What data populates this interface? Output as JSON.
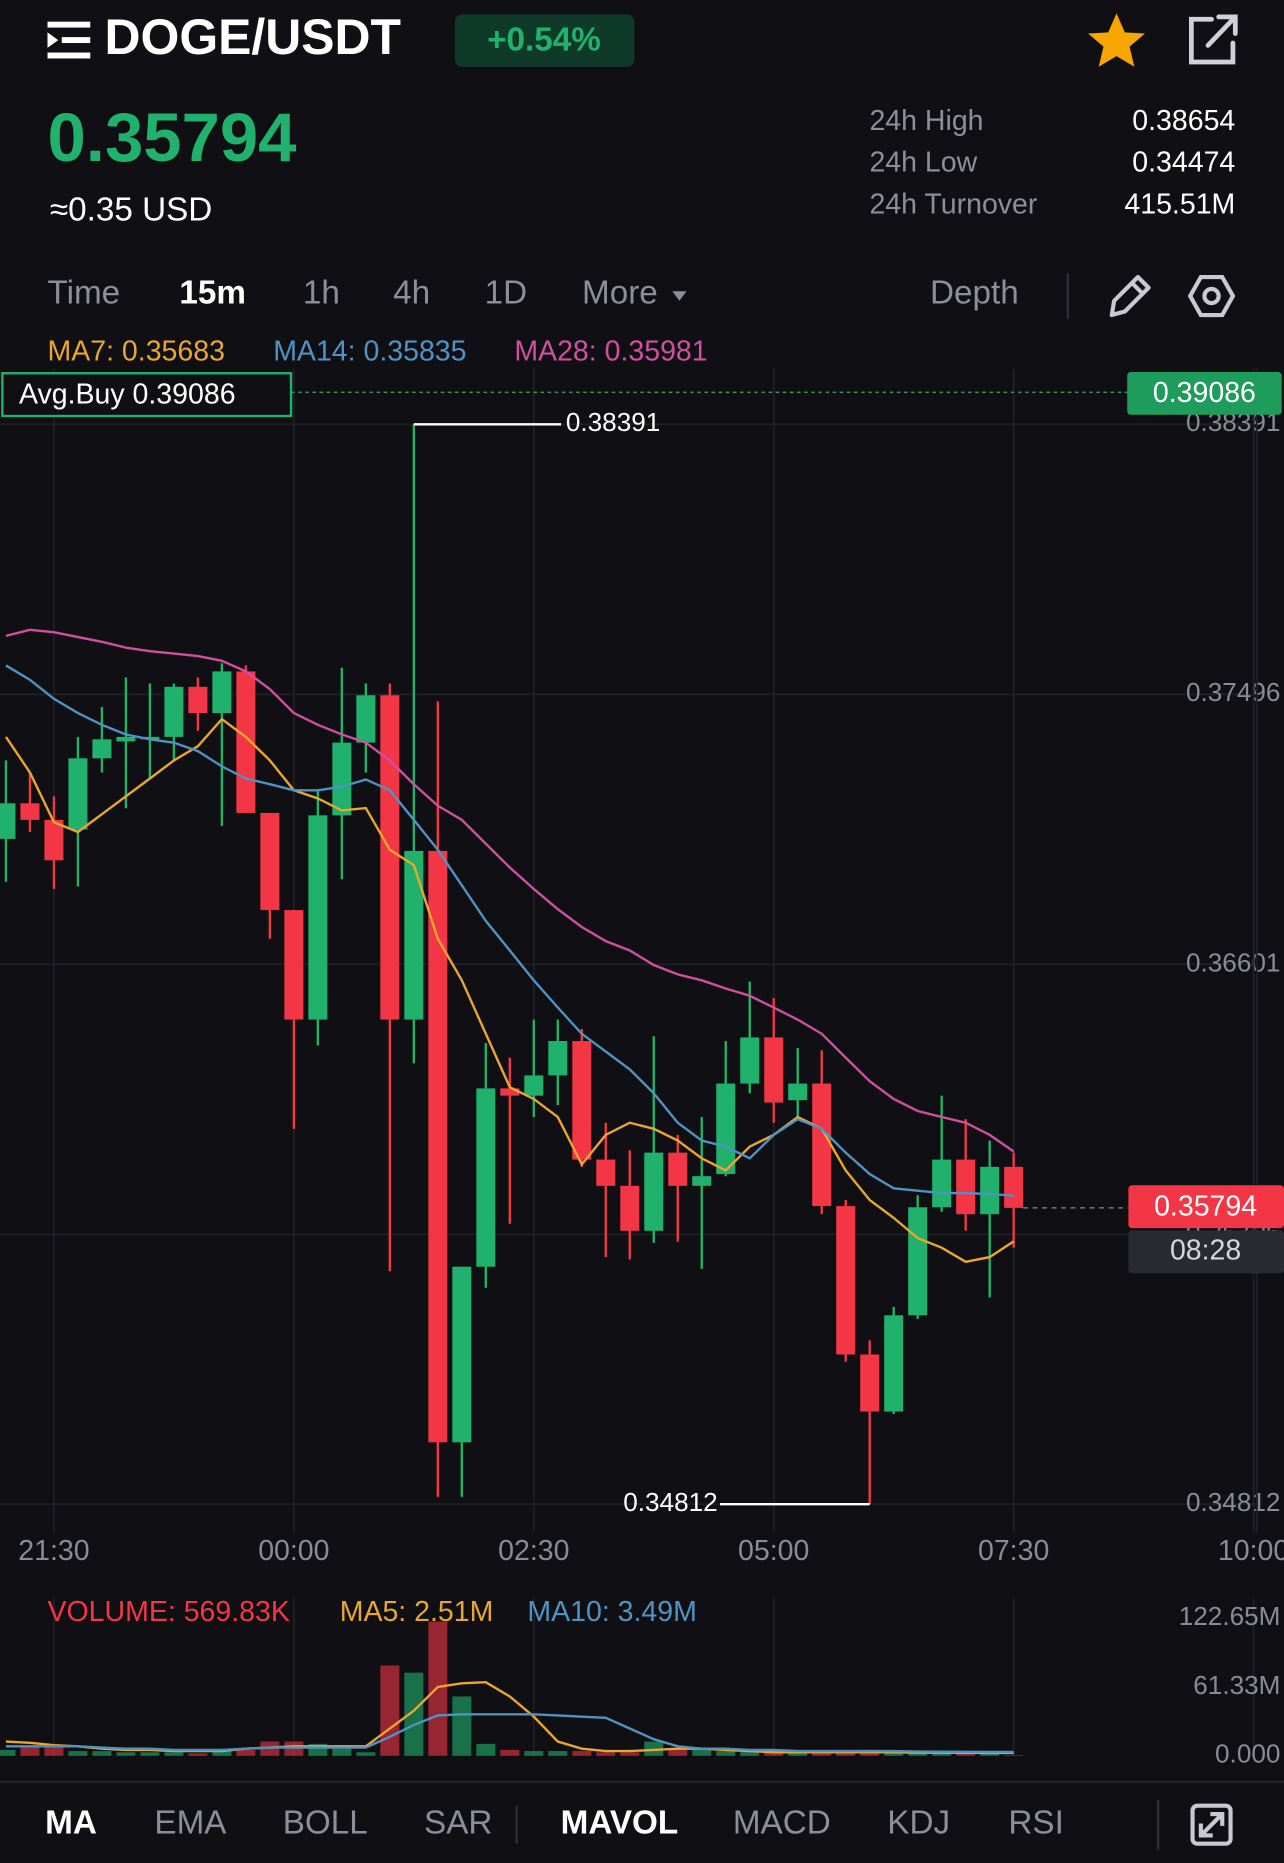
{
  "header": {
    "pair": "DOGE/USDT",
    "change": "+0.54%",
    "price": "0.35794",
    "usd": "≈0.35 USD",
    "stats": [
      {
        "label": "24h High",
        "value": "0.38654"
      },
      {
        "label": "24h Low",
        "value": "0.34474"
      },
      {
        "label": "24h Turnover",
        "value": "415.51M"
      }
    ]
  },
  "intervals": [
    "Time",
    "15m",
    "1h",
    "4h",
    "1D",
    "More"
  ],
  "depth": "Depth",
  "indicator_tabs": [
    "MA",
    "EMA",
    "BOLL",
    "SAR",
    "MAVOL",
    "MACD",
    "KDJ",
    "RSI"
  ],
  "chart_data": [
    {
      "type": "candlestick",
      "categories": [
        null,
        null,
        "21:30",
        null,
        null,
        null,
        null,
        null,
        null,
        null,
        null,
        null,
        "00:00",
        null,
        null,
        null,
        null,
        null,
        null,
        null,
        null,
        null,
        "02:30",
        null,
        null,
        null,
        null,
        null,
        null,
        null,
        null,
        null,
        "05:00",
        null,
        null,
        null,
        null,
        null,
        null,
        null,
        null,
        null,
        "07:30",
        null,
        null,
        null,
        null,
        null,
        null,
        null,
        null,
        null,
        "10:00"
      ],
      "open": [
        0.37017,
        0.37135,
        0.3708,
        0.37048,
        0.37284,
        0.3734,
        0.37347,
        0.37355,
        0.37521,
        0.37434,
        0.37572,
        0.37103,
        0.36781,
        0.36418,
        0.37095,
        0.37336,
        0.37493,
        0.36418,
        0.36977,
        0.35017,
        0.35599,
        0.3619,
        0.36166,
        0.36233,
        0.36347,
        0.35954,
        0.35867,
        0.35718,
        0.35977,
        0.35867,
        0.35906,
        0.36206,
        0.36359,
        0.36151,
        0.36206,
        0.358,
        0.35308,
        0.35119,
        0.35438,
        0.35796,
        0.35954,
        0.35773,
        0.3593,
        null,
        null,
        null,
        null,
        null,
        null,
        null,
        null,
        null,
        null
      ],
      "high": [
        0.37277,
        0.37237,
        0.37158,
        0.37355,
        0.37454,
        0.37552,
        0.37532,
        0.37532,
        0.37552,
        0.37599,
        0.37592,
        0.37103,
        0.36781,
        0.37178,
        0.37584,
        0.37532,
        0.37532,
        0.38391,
        0.37473,
        0.35599,
        0.3634,
        0.36292,
        0.36418,
        0.36418,
        0.36387,
        0.36076,
        0.35985,
        0.36363,
        0.36036,
        0.36095,
        0.36347,
        0.36544,
        0.36489,
        0.36324,
        0.36316,
        0.3582,
        0.35355,
        0.35466,
        0.35836,
        0.36166,
        0.36088,
        0.36017,
        0.35977,
        null,
        null,
        null,
        null,
        null,
        null,
        null,
        null,
        null,
        null
      ],
      "low": [
        0.36875,
        0.3704,
        0.36851,
        0.36859,
        0.37237,
        0.37119,
        0.37217,
        0.37277,
        0.37375,
        0.3706,
        0.37103,
        0.36686,
        0.36056,
        0.36332,
        0.36883,
        0.37237,
        0.35584,
        0.36273,
        0.34836,
        0.34836,
        0.35529,
        0.35741,
        0.36095,
        0.36135,
        0.3593,
        0.35631,
        0.35623,
        0.35678,
        0.35682,
        0.35592,
        0.35899,
        0.36174,
        0.36076,
        0.36095,
        0.35773,
        0.35284,
        0.34812,
        0.35111,
        0.35426,
        0.35781,
        0.35718,
        0.35497,
        0.35662,
        null,
        null,
        null,
        null,
        null,
        null,
        null,
        null,
        null,
        null
      ],
      "close": [
        0.37135,
        0.3708,
        0.36946,
        0.37284,
        0.37347,
        0.37355,
        0.37355,
        0.37521,
        0.37434,
        0.37572,
        0.37103,
        0.36781,
        0.36418,
        0.37095,
        0.37336,
        0.37493,
        0.36418,
        0.36977,
        0.35017,
        0.35599,
        0.3619,
        0.36166,
        0.36233,
        0.36347,
        0.35954,
        0.35867,
        0.35718,
        0.35977,
        0.35867,
        0.35899,
        0.36206,
        0.36359,
        0.36143,
        0.36206,
        0.358,
        0.35308,
        0.35119,
        0.35438,
        0.35796,
        0.35954,
        0.35773,
        0.3593,
        0.35794,
        null,
        null,
        null,
        null,
        null,
        null,
        null,
        null,
        null,
        null
      ],
      "up_color": "#20b26c",
      "down_color": "#f23645",
      "series": [
        {
          "name": "MA7: 0.35683",
          "color": "#e9a630",
          "values": [
            0.37355,
            0.37237,
            0.37072,
            0.3704,
            0.37099,
            0.37158,
            0.37217,
            0.37277,
            0.37324,
            0.37414,
            0.37355,
            0.37277,
            0.37178,
            0.37151,
            0.37111,
            0.37119,
            0.36981,
            0.3693,
            0.36686,
            0.36548,
            0.36371,
            0.36194,
            0.36155,
            0.36095,
            0.35938,
            0.36036,
            0.36076,
            0.36056,
            0.36017,
            0.35958,
            0.35918,
            0.35997,
            0.36036,
            0.36095,
            0.36056,
            0.35918,
            0.3582,
            0.35761,
            0.35694,
            0.35662,
            0.35615,
            0.35631,
            0.35683,
            null,
            null,
            null,
            null,
            null,
            null,
            null,
            null,
            null,
            null
          ]
        },
        {
          "name": "MA14: 0.35835",
          "color": "#4f93c4",
          "values": [
            0.37592,
            0.37544,
            0.37481,
            0.37434,
            0.37395,
            0.37363,
            0.37347,
            0.37336,
            0.37308,
            0.37257,
            0.37217,
            0.37198,
            0.37178,
            0.37178,
            0.3719,
            0.37214,
            0.37178,
            0.3708,
            0.36981,
            0.36863,
            0.36745,
            0.36647,
            0.36548,
            0.36458,
            0.36371,
            0.36312,
            0.36253,
            0.36174,
            0.36076,
            0.36017,
            0.35997,
            0.35958,
            0.36036,
            0.36088,
            0.36056,
            0.35977,
            0.35906,
            0.35859,
            0.35851,
            0.35843,
            0.35843,
            0.3584,
            0.35835,
            null,
            null,
            null,
            null,
            null,
            null,
            null,
            null,
            null,
            null
          ]
        },
        {
          "name": "MA28: 0.35981",
          "color": "#d14fa3",
          "values": [
            0.3769,
            0.3771,
            0.37702,
            0.37686,
            0.3767,
            0.37651,
            0.37639,
            0.37631,
            0.37623,
            0.37607,
            0.37572,
            0.37513,
            0.37434,
            0.37395,
            0.37363,
            0.37336,
            0.37277,
            0.37198,
            0.37127,
            0.3708,
            0.37001,
            0.36922,
            0.36851,
            0.36784,
            0.36725,
            0.36678,
            0.36647,
            0.36599,
            0.36568,
            0.36548,
            0.36521,
            0.36497,
            0.36458,
            0.36418,
            0.36371,
            0.36292,
            0.36214,
            0.36155,
            0.36115,
            0.36095,
            0.36076,
            0.36036,
            0.35981,
            null,
            null,
            null,
            null,
            null,
            null,
            null,
            null,
            null,
            null
          ]
        }
      ],
      "ylim": [
        0.34718,
        0.38576
      ],
      "yticks": [
        0.34812,
        0.35706,
        0.36601,
        0.37496,
        0.38391
      ],
      "grid": true,
      "avg_buy_label": "Avg.Buy 0.39086",
      "avg_buy": 0.39086,
      "countdown": "08:28"
    },
    {
      "type": "bar",
      "series": [
        {
          "name": "VOLUME: 569.83K",
          "color": "#f23645",
          "values": [
            5.29,
            7.4,
            8.46,
            4.23,
            4.23,
            3.17,
            3.17,
            3.17,
            2.11,
            4.23,
            5.29,
            12.69,
            12.69,
            10.57,
            6.34,
            3.17,
            80.35,
            74.01,
            119.47,
            52.86,
            10.57,
            5.29,
            4.23,
            4.23,
            4.23,
            3.17,
            3.17,
            12.69,
            6.34,
            5.29,
            4.23,
            4.23,
            4.23,
            3.17,
            3.17,
            3.17,
            5.29,
            3.17,
            3.17,
            2.11,
            2.11,
            2.11,
            0.56983
          ]
        },
        {
          "name": "MA5: 2.51M",
          "color": "#e9a630",
          "values": [
            12.68,
            11.63,
            9.51,
            8.46,
            6.34,
            5.29,
            5.29,
            4.23,
            4.23,
            4.23,
            6.34,
            7.4,
            8.46,
            8.46,
            8.46,
            8.46,
            24.31,
            40.17,
            61.31,
            64.48,
            65.53,
            52.85,
            34.88,
            12.68,
            6.34,
            4.23,
            4.23,
            5.29,
            6.34,
            6.34,
            5.29,
            4.23,
            3.17,
            3.17,
            3.17,
            3.17,
            3.17,
            3.17,
            2.8,
            2.7,
            2.6,
            2.55,
            2.51
          ]
        },
        {
          "name": "MA10: 3.49M",
          "color": "#4f93c4",
          "values": [
            8.46,
            8.46,
            8.46,
            8.46,
            7.4,
            6.34,
            6.34,
            5.29,
            5.29,
            5.29,
            6.34,
            7.4,
            7.4,
            7.4,
            7.4,
            7.4,
            16.91,
            27.48,
            35.94,
            37.0,
            37.0,
            37.0,
            37.0,
            35.94,
            34.88,
            33.82,
            24.31,
            14.8,
            8.46,
            6.34,
            6.34,
            5.29,
            5.29,
            4.23,
            4.23,
            4.23,
            4.23,
            4.23,
            3.8,
            3.7,
            3.6,
            3.5,
            3.49
          ]
        }
      ],
      "ylim": [
        0,
        140.6
      ],
      "yticks": [
        {
          "value": 0,
          "label": "0.000"
        },
        {
          "value": 61.33,
          "label": "61.33M"
        },
        {
          "value": 122.65,
          "label": "122.65M"
        }
      ]
    }
  ]
}
